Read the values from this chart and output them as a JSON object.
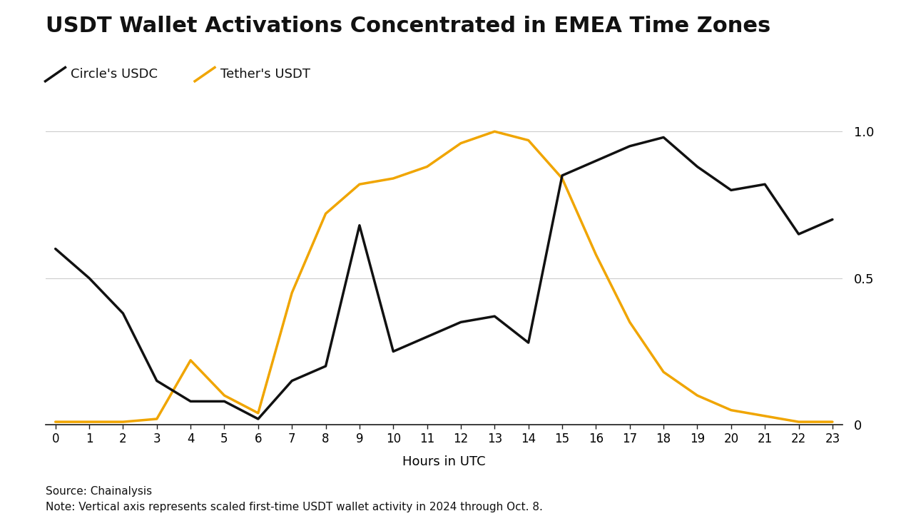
{
  "title": "USDT Wallet Activations Concentrated in EMEA Time Zones",
  "xlabel": "Hours in UTC",
  "source_note": "Source: Chainalysis",
  "note": "Note: Vertical axis represents scaled first-time USDT wallet activity in 2024 through Oct. 8.",
  "legend_usdc": "Circle's USDC",
  "legend_usdt": "Tether's USDT",
  "hours": [
    0,
    1,
    2,
    3,
    4,
    5,
    6,
    7,
    8,
    9,
    10,
    11,
    12,
    13,
    14,
    15,
    16,
    17,
    18,
    19,
    20,
    21,
    22,
    23
  ],
  "usdc": [
    0.6,
    0.5,
    0.38,
    0.15,
    0.08,
    0.08,
    0.02,
    0.15,
    0.2,
    0.68,
    0.25,
    0.3,
    0.35,
    0.37,
    0.28,
    0.85,
    0.9,
    0.95,
    0.98,
    0.88,
    0.8,
    0.82,
    0.65,
    0.7
  ],
  "usdt": [
    0.01,
    0.01,
    0.01,
    0.02,
    0.22,
    0.1,
    0.04,
    0.45,
    0.72,
    0.82,
    0.84,
    0.88,
    0.96,
    1.0,
    0.97,
    0.84,
    0.58,
    0.35,
    0.18,
    0.1,
    0.05,
    0.03,
    0.01,
    0.01
  ],
  "usdc_color": "#111111",
  "usdt_color": "#f0a500",
  "background_color": "#ffffff",
  "grid_color": "#cccccc",
  "ylim": [
    0,
    1.05
  ],
  "yticks": [
    0,
    0.5,
    1.0
  ],
  "ytick_labels": [
    "0",
    "0.5",
    "1.0"
  ],
  "title_fontsize": 22,
  "label_fontsize": 13,
  "legend_fontsize": 13,
  "note_fontsize": 11,
  "line_width": 2.5
}
